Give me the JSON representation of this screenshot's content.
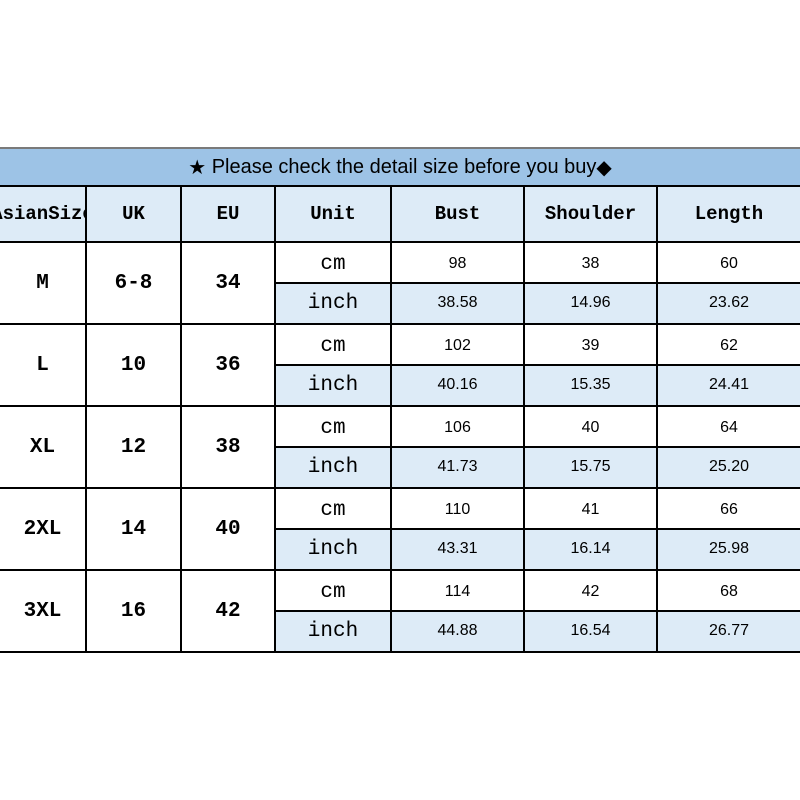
{
  "banner": {
    "star_icon": "★",
    "text": "Please check the detail size before you buy",
    "diamond_icon": "◆"
  },
  "colors": {
    "banner": "#9dc3e6",
    "header": "#ddebf7",
    "inch_row": "#ddebf7"
  },
  "headers": [
    "Asian Size",
    "UK",
    "EU",
    "Unit",
    "Bust",
    "Shoulder",
    "Length"
  ],
  "header_asian_lines": [
    "Asian",
    "Size"
  ],
  "rows": [
    {
      "size": "M",
      "uk": "6-8",
      "eu": "34",
      "cm": {
        "unit": "cm",
        "bust": "98",
        "shoulder": "38",
        "length": "60"
      },
      "inch": {
        "unit": "inch",
        "bust": "38.58",
        "shoulder": "14.96",
        "length": "23.62"
      }
    },
    {
      "size": "L",
      "uk": "10",
      "eu": "36",
      "cm": {
        "unit": "cm",
        "bust": "102",
        "shoulder": "39",
        "length": "62"
      },
      "inch": {
        "unit": "inch",
        "bust": "40.16",
        "shoulder": "15.35",
        "length": "24.41"
      }
    },
    {
      "size": "XL",
      "uk": "12",
      "eu": "38",
      "cm": {
        "unit": "cm",
        "bust": "106",
        "shoulder": "40",
        "length": "64"
      },
      "inch": {
        "unit": "inch",
        "bust": "41.73",
        "shoulder": "15.75",
        "length": "25.20"
      }
    },
    {
      "size": "2XL",
      "uk": "14",
      "eu": "40",
      "cm": {
        "unit": "cm",
        "bust": "110",
        "shoulder": "41",
        "length": "66"
      },
      "inch": {
        "unit": "inch",
        "bust": "43.31",
        "shoulder": "16.14",
        "length": "25.98"
      }
    },
    {
      "size": "3XL",
      "uk": "16",
      "eu": "42",
      "cm": {
        "unit": "cm",
        "bust": "114",
        "shoulder": "42",
        "length": "68"
      },
      "inch": {
        "unit": "inch",
        "bust": "44.88",
        "shoulder": "16.54",
        "length": "26.77"
      }
    }
  ]
}
